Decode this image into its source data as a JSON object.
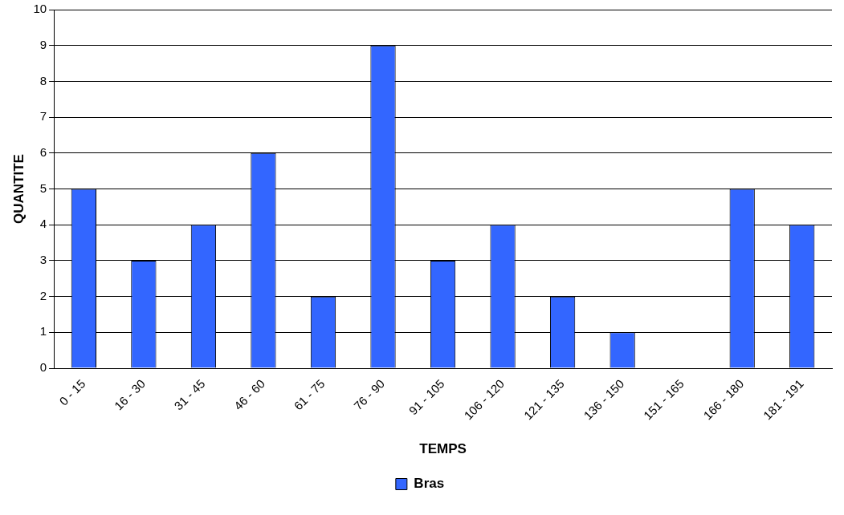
{
  "chart_data": {
    "type": "bar",
    "xlabel": "TEMPS",
    "ylabel": "QUANTITE",
    "categories": [
      "0 - 15",
      "16 - 30",
      "31 - 45",
      "46 - 60",
      "61 - 75",
      "76 - 90",
      "91 - 105",
      "106 - 120",
      "121 - 135",
      "136 - 150",
      "151 - 165",
      "166 - 180",
      "181 - 191"
    ],
    "series": [
      {
        "name": "Bras",
        "color": "#3366ff",
        "values": [
          5,
          3,
          4,
          6,
          2,
          9,
          3,
          4,
          2,
          1,
          0,
          5,
          4
        ]
      }
    ],
    "ylim": [
      0,
      10
    ],
    "yticks": [
      0,
      1,
      2,
      3,
      4,
      5,
      6,
      7,
      8,
      9,
      10
    ],
    "grid": "y",
    "legend": "bottom"
  }
}
